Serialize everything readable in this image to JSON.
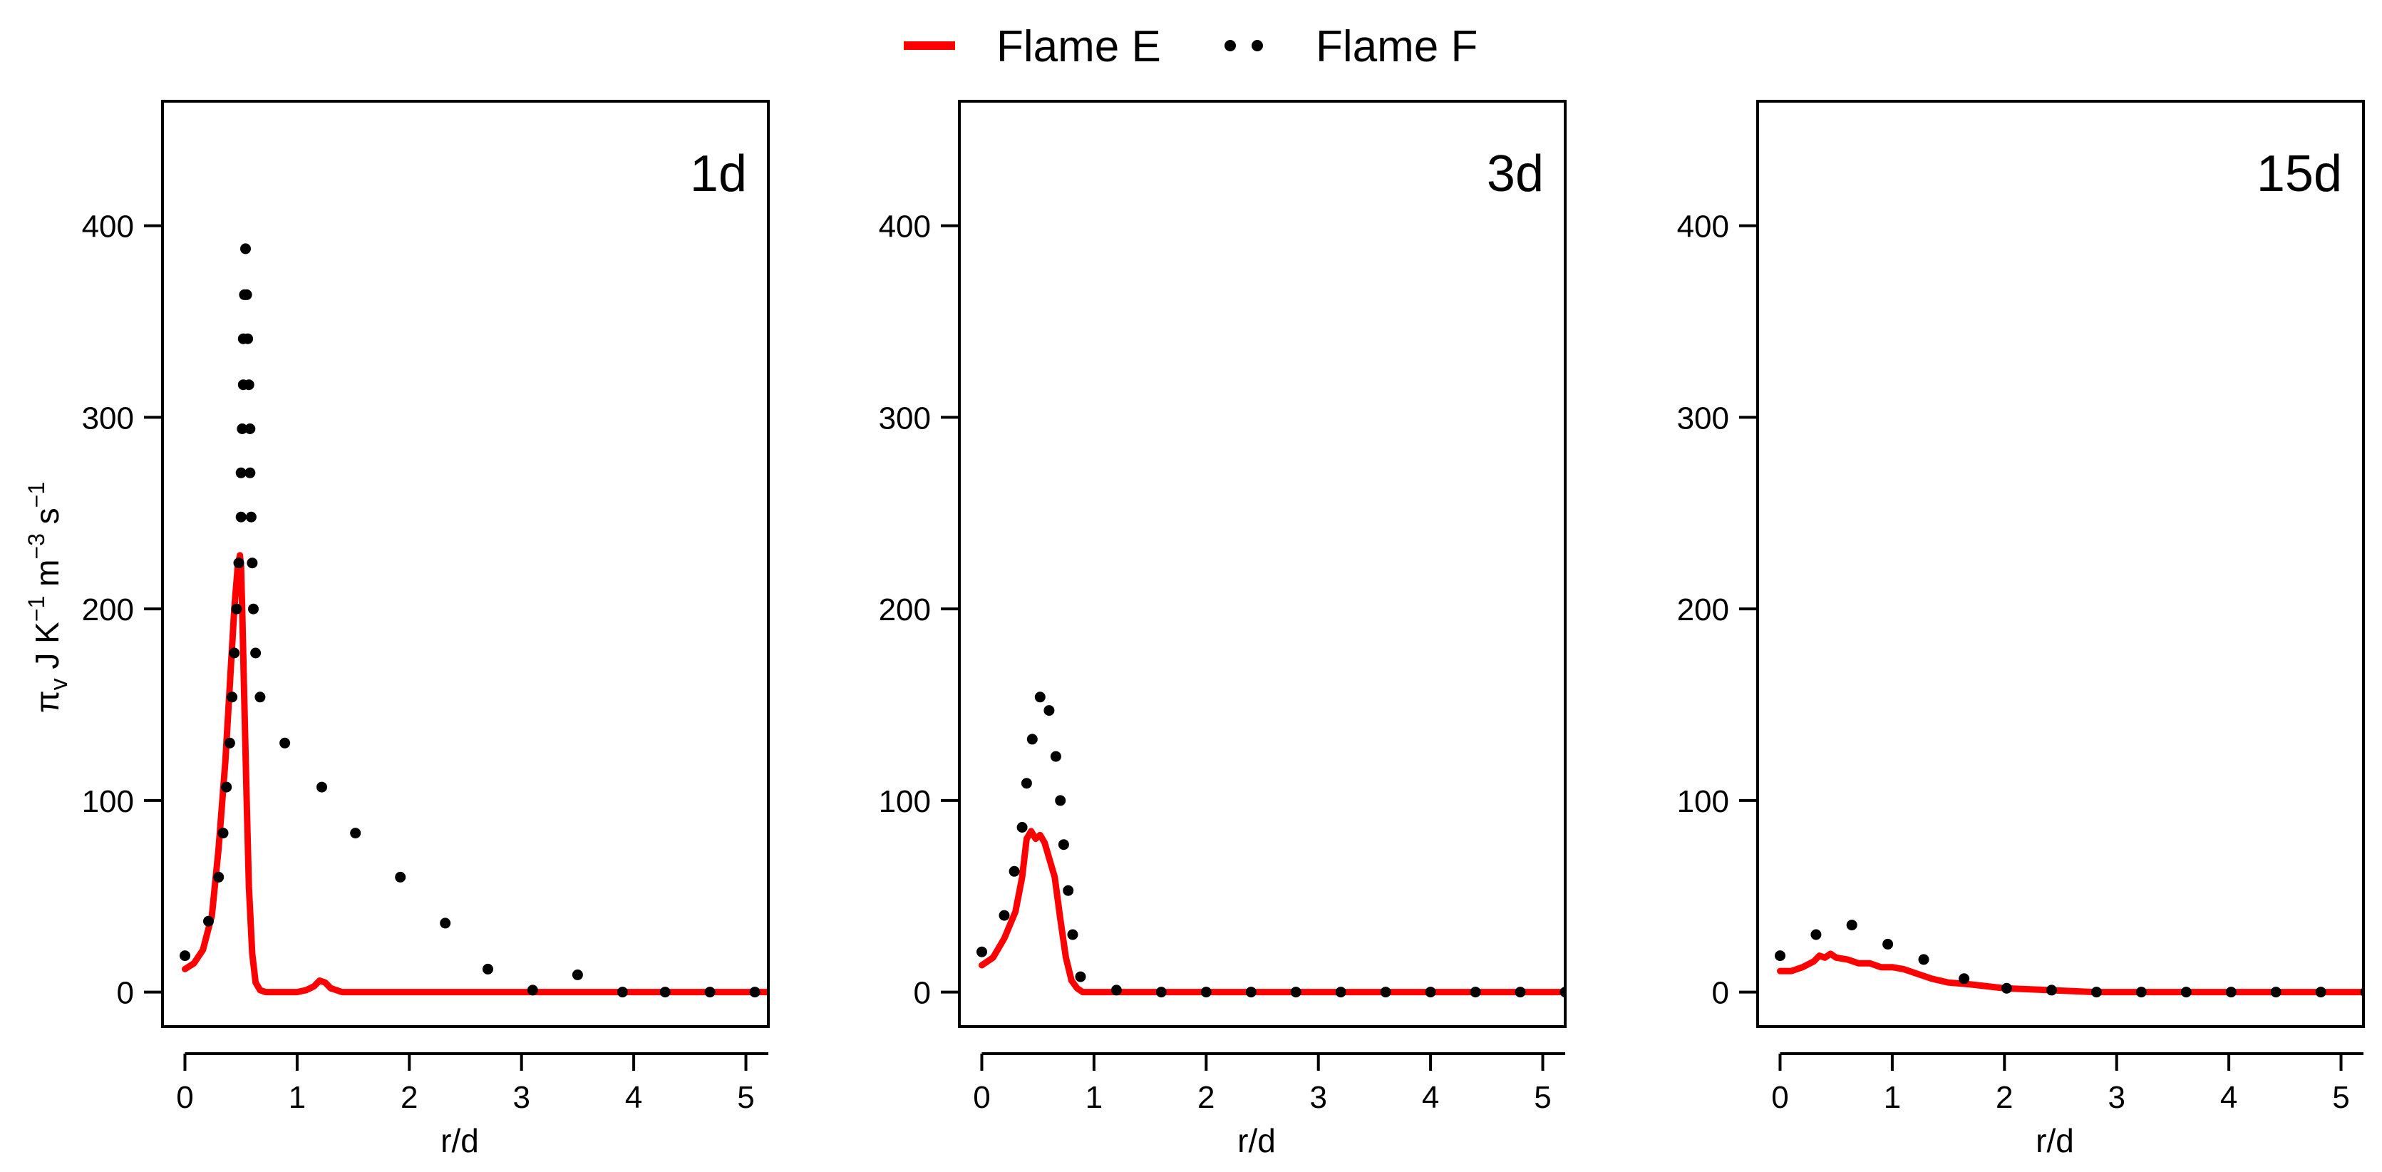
{
  "legend": {
    "position": "top-center",
    "items": [
      {
        "label": "Flame E",
        "style": "line",
        "color": "#ff0000"
      },
      {
        "label": "Flame F",
        "style": "dots",
        "color": "#000000"
      }
    ]
  },
  "ylabel": {
    "main": "π",
    "sub": "v",
    "rest": " J K",
    "sup1": "−1",
    "m": " m",
    "sup2": "−3",
    "s": " s",
    "sup3": "−1"
  },
  "colors": {
    "flame_e": "#ff0000",
    "flame_f": "#000000"
  },
  "chart_data": [
    {
      "type": "line",
      "panel_label": "1d",
      "xlabel": "r/d",
      "xlim": [
        -0.2,
        5.2
      ],
      "ylim": [
        -18,
        465
      ],
      "xticks": [
        0,
        1,
        2,
        3,
        4,
        5
      ],
      "yticks": [
        0,
        100,
        200,
        300,
        400
      ],
      "series": [
        {
          "name": "Flame E",
          "style": "line",
          "x": [
            0,
            0.08,
            0.16,
            0.24,
            0.3,
            0.36,
            0.4,
            0.44,
            0.47,
            0.49,
            0.5,
            0.51,
            0.53,
            0.55,
            0.57,
            0.6,
            0.63,
            0.67,
            0.72,
            0.8,
            0.9,
            1.0,
            1.08,
            1.15,
            1.2,
            1.25,
            1.3,
            1.35,
            1.4,
            1.5,
            2,
            3,
            4,
            5.2
          ],
          "y": [
            12,
            15,
            22,
            40,
            75,
            120,
            160,
            200,
            222,
            228,
            222,
            200,
            150,
            100,
            55,
            20,
            5,
            1,
            0,
            0,
            0,
            0,
            1,
            3,
            6,
            5,
            2,
            1,
            0,
            0,
            0,
            0,
            0,
            0
          ]
        },
        {
          "name": "Flame F",
          "style": "dots",
          "x": [
            0,
            0.21,
            0.3,
            0.34,
            0.37,
            0.4,
            0.42,
            0.44,
            0.46,
            0.48,
            0.5,
            0.5,
            0.51,
            0.52,
            0.52,
            0.53,
            0.54,
            0.55,
            0.56,
            0.57,
            0.58,
            0.58,
            0.59,
            0.6,
            0.61,
            0.63,
            0.67,
            0.89,
            1.22,
            1.52,
            1.92,
            2.32,
            2.7,
            3.1,
            3.5,
            3.9,
            4.28,
            4.68,
            5.08
          ],
          "y": [
            19,
            37,
            60,
            83,
            107,
            130,
            154,
            177,
            200,
            224,
            248,
            271,
            294,
            317,
            341,
            364,
            388,
            364,
            341,
            317,
            294,
            271,
            248,
            224,
            200,
            177,
            154,
            130,
            107,
            83,
            60,
            36,
            12,
            1,
            9,
            0,
            0,
            0,
            0
          ]
        }
      ]
    },
    {
      "type": "line",
      "panel_label": "3d",
      "xlabel": "r/d",
      "xlim": [
        -0.2,
        5.2
      ],
      "ylim": [
        -18,
        465
      ],
      "xticks": [
        0,
        1,
        2,
        3,
        4,
        5
      ],
      "yticks": [
        0,
        100,
        200,
        300,
        400
      ],
      "series": [
        {
          "name": "Flame E",
          "style": "line",
          "x": [
            0,
            0.1,
            0.2,
            0.3,
            0.36,
            0.4,
            0.44,
            0.48,
            0.52,
            0.56,
            0.6,
            0.65,
            0.7,
            0.75,
            0.8,
            0.85,
            0.9,
            1.0,
            1.2,
            2,
            3,
            4,
            5.2
          ],
          "y": [
            14,
            18,
            28,
            42,
            60,
            80,
            84,
            80,
            82,
            78,
            70,
            60,
            38,
            18,
            6,
            2,
            0,
            0,
            0,
            0,
            0,
            0,
            0
          ]
        },
        {
          "name": "Flame F",
          "style": "dots",
          "x": [
            0,
            0.2,
            0.29,
            0.36,
            0.4,
            0.45,
            0.52,
            0.6,
            0.66,
            0.7,
            0.73,
            0.77,
            0.81,
            0.88,
            1.2,
            1.6,
            2.0,
            2.4,
            2.8,
            3.2,
            3.6,
            4.0,
            4.4,
            4.8,
            5.2
          ],
          "y": [
            21,
            40,
            63,
            86,
            109,
            132,
            154,
            147,
            123,
            100,
            77,
            53,
            30,
            8,
            1,
            0,
            0,
            0,
            0,
            0,
            0,
            0,
            0,
            0,
            0
          ]
        }
      ]
    },
    {
      "type": "line",
      "panel_label": "15d",
      "xlabel": "r/d",
      "xlim": [
        -0.2,
        5.2
      ],
      "ylim": [
        -18,
        465
      ],
      "xticks": [
        0,
        1,
        2,
        3,
        4,
        5
      ],
      "yticks": [
        0,
        100,
        200,
        300,
        400
      ],
      "series": [
        {
          "name": "Flame E",
          "style": "line",
          "x": [
            0,
            0.1,
            0.2,
            0.3,
            0.35,
            0.4,
            0.45,
            0.5,
            0.6,
            0.7,
            0.8,
            0.9,
            1.0,
            1.1,
            1.2,
            1.35,
            1.5,
            1.7,
            2.0,
            2.4,
            2.8,
            3.2,
            4,
            5.2
          ],
          "y": [
            11,
            11,
            13,
            16,
            19,
            18,
            20,
            18,
            17,
            15,
            15,
            13,
            13,
            12,
            10,
            7,
            5,
            4,
            2,
            1,
            0,
            0,
            0,
            0
          ]
        },
        {
          "name": "Flame F",
          "style": "dots",
          "x": [
            0,
            0.32,
            0.64,
            0.96,
            1.28,
            1.64,
            2.02,
            2.42,
            2.82,
            3.22,
            3.62,
            4.02,
            4.42,
            4.82,
            5.22
          ],
          "y": [
            19,
            30,
            35,
            25,
            17,
            7,
            2,
            1,
            0,
            0,
            0,
            0,
            0,
            0,
            0
          ]
        }
      ]
    }
  ]
}
